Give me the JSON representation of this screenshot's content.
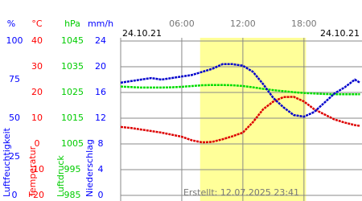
{
  "chart_data": {
    "type": "line",
    "date_start": "24.10.21",
    "date_end": "24.10.21",
    "footer": "Erstellt: 12.07.2025 23:41",
    "x": [
      0,
      1,
      2,
      3,
      4,
      5,
      6,
      7,
      8,
      9,
      10,
      11,
      12,
      13,
      14,
      15,
      16,
      17,
      18,
      19,
      20,
      21,
      22,
      23,
      23.5
    ],
    "xlim": [
      0,
      23.7
    ],
    "xticks": [
      {
        "value": 6,
        "label": "06:00"
      },
      {
        "value": 12,
        "label": "12:00"
      },
      {
        "value": 18,
        "label": "18:00"
      }
    ],
    "daylight": [
      7.8,
      18.2
    ],
    "grid": true,
    "grid_axis": 1,
    "axes": [
      {
        "unit": "%",
        "label": "Luftfeuchtigkeit",
        "color": "#0000ff",
        "ylim": [
          0,
          100
        ],
        "yticks": [
          0,
          25,
          50,
          75,
          100
        ]
      },
      {
        "unit": "°C",
        "label": "Temperatur",
        "color": "#ff0000",
        "ylim": [
          -20,
          40
        ],
        "yticks": [
          -20,
          -10,
          0,
          10,
          20,
          30,
          40
        ]
      },
      {
        "unit": "hPa",
        "label": "Luftdruck",
        "color": "#00cc00",
        "ylim": [
          985,
          1045
        ],
        "yticks": [
          985,
          995,
          1005,
          1015,
          1025,
          1035,
          1045
        ]
      },
      {
        "unit": "mm/h",
        "label": "Niederschlag",
        "color": "#0000ff",
        "ylim": [
          0,
          24
        ],
        "yticks": [
          0,
          4,
          8,
          12,
          16,
          20,
          24
        ]
      }
    ],
    "series": [
      {
        "axis": 2,
        "color": "#00dd00",
        "values": [
          1027.3,
          1027.1,
          1026.9,
          1026.9,
          1026.9,
          1027.0,
          1027.2,
          1027.5,
          1027.8,
          1027.9,
          1027.9,
          1027.8,
          1027.5,
          1027.0,
          1026.4,
          1025.9,
          1025.5,
          1025.1,
          1024.8,
          1024.6,
          1024.4,
          1024.3,
          1024.3,
          1024.3,
          1024.3
        ]
      },
      {
        "axis": 1,
        "color": "#dd0000",
        "values": [
          6.6,
          6.2,
          5.6,
          5.0,
          4.4,
          3.6,
          2.8,
          1.4,
          0.6,
          0.8,
          1.8,
          3.0,
          4.4,
          8.5,
          13.5,
          16.5,
          18.2,
          18.3,
          16.5,
          13.5,
          11.5,
          9.5,
          8.3,
          7.3,
          7.0
        ]
      },
      {
        "axis": 0,
        "color": "#0000cc",
        "values": [
          73,
          74,
          75,
          76,
          75,
          76,
          77,
          78,
          80,
          82,
          85,
          85,
          84,
          80,
          72,
          63,
          57,
          52,
          51,
          54,
          60,
          66,
          70,
          75,
          73
        ]
      }
    ]
  }
}
